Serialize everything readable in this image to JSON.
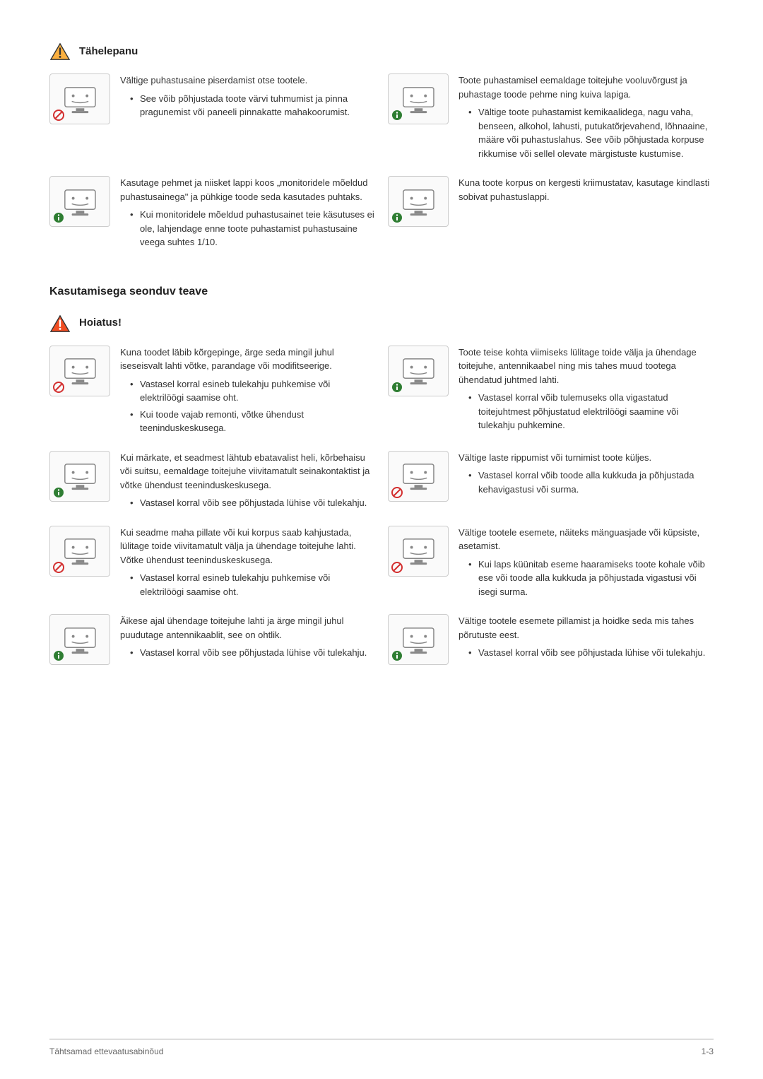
{
  "colors": {
    "attention_fill": "#fbb040",
    "attention_stroke": "#333333",
    "warning_fill": "#f04e23",
    "info_fill": "#2e7d32",
    "prohib_fill": "#d32f2f",
    "text": "#333333",
    "border": "#cccccc"
  },
  "sections": [
    {
      "icon": "attention",
      "title": "Tähelepanu",
      "entries": [
        [
          {
            "badge": "prohib",
            "lead": "Vältige puhastusaine piserdamist otse tootele.",
            "bullets": [
              "See võib põhjustada toote värvi tuhmumist ja pinna pragunemist või paneeli pinnakatte mahakoorumist."
            ]
          },
          {
            "badge": "info",
            "lead": "Toote puhastamisel eemaldage toitejuhe vooluvõrgust ja puhastage toode pehme ning kuiva lapiga.",
            "bullets": [
              "Vältige toote puhastamist kemikaalidega, nagu vaha, benseen, alkohol, lahusti, putukatõrjevahend, lõhnaaine, määre või puhastuslahus. See võib põhjustada korpuse rikkumise või sellel olevate märgistuste kustumise."
            ]
          }
        ],
        [
          {
            "badge": "info",
            "lead": "Kasutage pehmet ja niisket lappi koos „monitoridele mõeldud puhastusainega\" ja pühkige toode seda kasutades puhtaks.",
            "bullets": [
              "Kui monitoridele mõeldud puhastusainet teie käsutuses ei ole, lahjendage enne toote puhastamist puhastusaine veega suhtes 1/10."
            ]
          },
          {
            "badge": "info",
            "lead": "Kuna toote korpus on kergesti kriimustatav, kasutage kindlasti sobivat puhastuslappi.",
            "bullets": []
          }
        ]
      ]
    }
  ],
  "h2": "Kasutamisega seonduv teave",
  "warning": {
    "icon": "warning",
    "title": "Hoiatus!",
    "entries": [
      [
        {
          "badge": "prohib",
          "lead": "Kuna toodet läbib kõrgepinge, ärge seda mingil juhul iseseisvalt lahti võtke, parandage või modifitseerige.",
          "bullets": [
            "Vastasel korral esineb tulekahju puhkemise või elektrilöögi saamise oht.",
            "Kui toode vajab remonti, võtke ühendust teeninduskeskusega."
          ]
        },
        {
          "badge": "info",
          "lead": "Toote teise kohta viimiseks lülitage toide välja ja ühendage toitejuhe, antennikaabel ning mis tahes muud tootega ühendatud juhtmed lahti.",
          "bullets": [
            "Vastasel korral võib tulemuseks olla vigastatud toitejuhtmest põhjustatud elektrilöögi saamine või tulekahju puhkemine."
          ]
        }
      ],
      [
        {
          "badge": "info",
          "lead": "Kui märkate, et seadmest lähtub ebatavalist heli, kõrbehaisu või suitsu, eemaldage toitejuhe viivitamatult seinakontaktist ja võtke ühendust teeninduskeskusega.",
          "bullets": [
            "Vastasel korral võib see põhjustada lühise või tulekahju."
          ]
        },
        {
          "badge": "prohib",
          "lead": "Vältige laste rippumist või turnimist toote küljes.",
          "bullets": [
            "Vastasel korral võib toode alla kukkuda ja põhjustada kehavigastusi või surma."
          ]
        }
      ],
      [
        {
          "badge": "prohib",
          "lead": "Kui seadme maha pillate või kui korpus saab kahjustada, lülitage toide viivitamatult välja ja ühendage toitejuhe lahti. Võtke ühendust teeninduskeskusega.",
          "bullets": [
            "Vastasel korral esineb tulekahju puhkemise või elektrilöögi saamise oht."
          ]
        },
        {
          "badge": "prohib",
          "lead": "Vältige tootele esemete, näiteks mänguasjade või küpsiste, asetamist.",
          "bullets": [
            "Kui laps küünitab eseme haaramiseks toote kohale võib ese või toode alla kukkuda ja põhjustada vigastusi või isegi surma."
          ]
        }
      ],
      [
        {
          "badge": "info",
          "lead": "Äikese ajal ühendage toitejuhe lahti ja ärge mingil juhul puudutage antennikaablit, see on ohtlik.",
          "bullets": [
            "Vastasel korral võib see põhjustada lühise või tulekahju."
          ]
        },
        {
          "badge": "info",
          "lead": "Vältige tootele esemete pillamist ja hoidke seda mis tahes põrutuste eest.",
          "bullets": [
            "Vastasel korral võib see põhjustada lühise või tulekahju."
          ]
        }
      ]
    ]
  },
  "footer": {
    "left": "Tähtsamad ettevaatusabinõud",
    "right": "1-3"
  }
}
